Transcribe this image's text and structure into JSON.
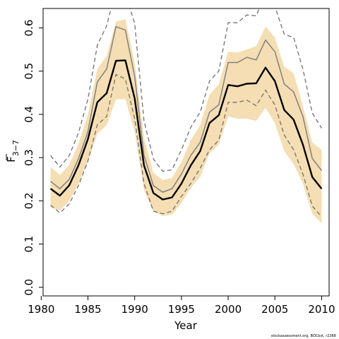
{
  "chart_data": {
    "type": "line",
    "xlabel": "Year",
    "ylabel": {
      "base": "F",
      "sub": "3−7"
    },
    "xlim": [
      1980.2,
      2010.8
    ],
    "ylim": [
      -0.02,
      0.645
    ],
    "x_ticks": [
      1980,
      1985,
      1990,
      1995,
      2000,
      2005,
      2010
    ],
    "y_ticks": [
      "0.0",
      "0.1",
      "0.2",
      "0.3",
      "0.4",
      "0.5",
      "0.6"
    ],
    "credit": "stockassessment.org, BOCbst, r2368",
    "colors": {
      "band": "#f5deb3",
      "estimate": "#000000",
      "other": "#808080",
      "dashed": "#707070"
    },
    "x": [
      1981,
      1982,
      1983,
      1984,
      1985,
      1986,
      1987,
      1988,
      1989,
      1990,
      1991,
      1992,
      1993,
      1994,
      1995,
      1996,
      1997,
      1998,
      1999,
      2000,
      2001,
      2002,
      2003,
      2004,
      2005,
      2006,
      2007,
      2008,
      2009,
      2010
    ],
    "series": [
      {
        "role": "band",
        "lower": [
          0.185,
          0.178,
          0.2,
          0.24,
          0.29,
          0.355,
          0.375,
          0.435,
          0.435,
          0.36,
          0.225,
          0.175,
          0.165,
          0.168,
          0.195,
          0.23,
          0.255,
          0.31,
          0.33,
          0.395,
          0.39,
          0.39,
          0.385,
          0.415,
          0.38,
          0.315,
          0.285,
          0.24,
          0.17,
          0.148
        ],
        "upper": [
          0.278,
          0.26,
          0.283,
          0.333,
          0.4,
          0.505,
          0.535,
          0.615,
          0.62,
          0.52,
          0.345,
          0.265,
          0.248,
          0.253,
          0.29,
          0.34,
          0.375,
          0.445,
          0.47,
          0.545,
          0.543,
          0.55,
          0.558,
          0.603,
          0.578,
          0.51,
          0.495,
          0.42,
          0.335,
          0.318
        ]
      },
      {
        "role": "estimate",
        "values": [
          0.228,
          0.212,
          0.236,
          0.283,
          0.343,
          0.428,
          0.449,
          0.524,
          0.525,
          0.437,
          0.282,
          0.218,
          0.203,
          0.208,
          0.24,
          0.282,
          0.315,
          0.38,
          0.398,
          0.468,
          0.465,
          0.471,
          0.472,
          0.508,
          0.477,
          0.41,
          0.388,
          0.33,
          0.255,
          0.228
        ]
      },
      {
        "role": "other",
        "values": [
          0.245,
          0.228,
          0.25,
          0.298,
          0.36,
          0.475,
          0.505,
          0.603,
          0.595,
          0.488,
          0.305,
          0.235,
          0.22,
          0.228,
          0.262,
          0.305,
          0.335,
          0.405,
          0.422,
          0.52,
          0.52,
          0.532,
          0.526,
          0.572,
          0.545,
          0.47,
          0.452,
          0.395,
          0.298,
          0.27
        ]
      },
      {
        "role": "dashed-upper",
        "values": [
          0.305,
          0.278,
          0.305,
          0.358,
          0.435,
          0.56,
          0.605,
          0.69,
          0.68,
          0.61,
          0.385,
          0.297,
          0.268,
          0.272,
          0.318,
          0.37,
          0.405,
          0.477,
          0.5,
          0.612,
          0.612,
          0.63,
          0.628,
          0.68,
          0.65,
          0.585,
          0.578,
          0.505,
          0.403,
          0.368
        ]
      },
      {
        "role": "dashed-lower",
        "values": [
          0.19,
          0.172,
          0.193,
          0.236,
          0.292,
          0.376,
          0.395,
          0.492,
          0.482,
          0.39,
          0.24,
          0.176,
          0.17,
          0.176,
          0.21,
          0.24,
          0.275,
          0.318,
          0.34,
          0.428,
          0.428,
          0.433,
          0.42,
          0.456,
          0.422,
          0.352,
          0.318,
          0.262,
          0.188,
          0.163
        ]
      }
    ]
  }
}
